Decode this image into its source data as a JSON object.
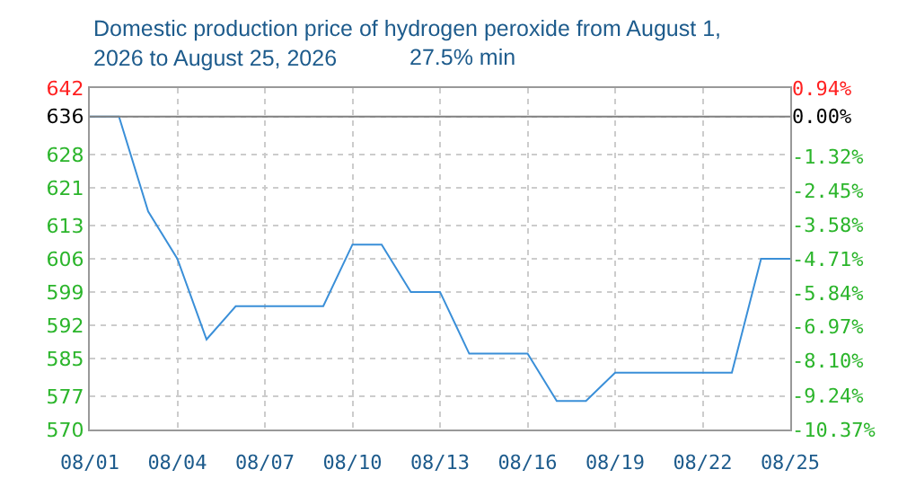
{
  "chart_data": {
    "type": "line",
    "title": "Domestic production price of hydrogen peroxide from August 1,\n2026 to August 25, 2026",
    "subtitle": "27.5% min",
    "x": [
      "2026-08-01",
      "2026-08-02",
      "2026-08-03",
      "2026-08-04",
      "2026-08-05",
      "2026-08-06",
      "2026-08-07",
      "2026-08-08",
      "2026-08-09",
      "2026-08-10",
      "2026-08-11",
      "2026-08-12",
      "2026-08-13",
      "2026-08-14",
      "2026-08-15",
      "2026-08-16",
      "2026-08-17",
      "2026-08-18",
      "2026-08-19",
      "2026-08-20",
      "2026-08-21",
      "2026-08-22",
      "2026-08-23",
      "2026-08-24",
      "2026-08-25"
    ],
    "series": [
      {
        "color": "#3a8fd8",
        "values": [
          636,
          636,
          616,
          606,
          589,
          596,
          596,
          596,
          596,
          609,
          609,
          599,
          599,
          586,
          586,
          586,
          576,
          576,
          582,
          582,
          582,
          582,
          582,
          606,
          606
        ]
      }
    ],
    "xlim": [
      "2026-08-01",
      "2026-08-25"
    ],
    "xticks": [
      {
        "value": "2026-08-01",
        "label": "08/01"
      },
      {
        "value": "2026-08-04",
        "label": "08/04"
      },
      {
        "value": "2026-08-07",
        "label": "08/07"
      },
      {
        "value": "2026-08-10",
        "label": "08/10"
      },
      {
        "value": "2026-08-13",
        "label": "08/13"
      },
      {
        "value": "2026-08-16",
        "label": "08/16"
      },
      {
        "value": "2026-08-19",
        "label": "08/19"
      },
      {
        "value": "2026-08-22",
        "label": "08/22"
      },
      {
        "value": "2026-08-25",
        "label": "08/25"
      }
    ],
    "ylim": [
      570,
      642
    ],
    "yticks": [
      570,
      577,
      585,
      592,
      599,
      606,
      613,
      621,
      628,
      636,
      642
    ],
    "y2lim": [
      -10.37,
      0.94
    ],
    "y2ticks": [
      {
        "value": -10.37,
        "label": "-10.37%"
      },
      {
        "value": -9.24,
        "label": "-9.24%"
      },
      {
        "value": -8.1,
        "label": "-8.10%"
      },
      {
        "value": -6.97,
        "label": "-6.97%"
      },
      {
        "value": -5.84,
        "label": "-5.84%"
      },
      {
        "value": -4.71,
        "label": "-4.71%"
      },
      {
        "value": -3.58,
        "label": "-3.58%"
      },
      {
        "value": -2.45,
        "label": "-2.45%"
      },
      {
        "value": -1.32,
        "label": "-1.32%"
      },
      {
        "value": 0,
        "label": "0.00%"
      },
      {
        "value": 0.94,
        "label": "0.94%"
      }
    ],
    "ref_lines": [
      {
        "axis": "y",
        "value": 636,
        "color": "#808080"
      }
    ],
    "grid": true
  }
}
